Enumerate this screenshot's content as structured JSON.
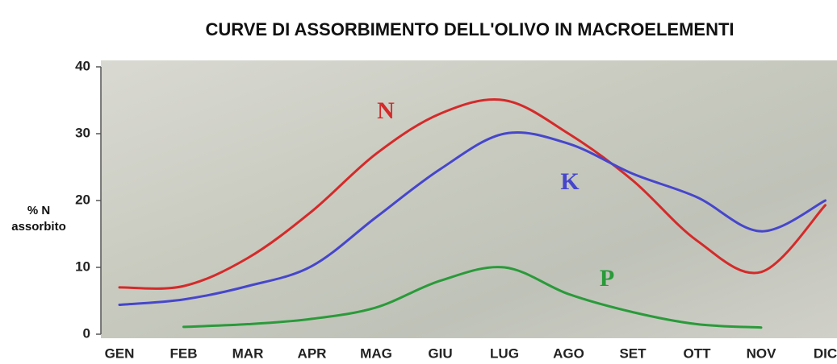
{
  "chart_data": {
    "type": "line",
    "title": "CURVE DI ASSORBIMENTO DELL'OLIVO IN MACROELEMENTI",
    "ylabel": [
      "% N",
      "assorbito"
    ],
    "categories": [
      "GEN",
      "FEB",
      "MAR",
      "APR",
      "MAG",
      "GIU",
      "LUG",
      "AGO",
      "SET",
      "OTT",
      "NOV",
      "DIC"
    ],
    "series": [
      {
        "name": "N",
        "color": "#d42a2a",
        "values": [
          7,
          7.2,
          11.4,
          18.4,
          27,
          33,
          35,
          30,
          23,
          14,
          9.3,
          19.3
        ]
      },
      {
        "name": "K",
        "color": "#4646cc",
        "values": [
          4.4,
          5.2,
          7.2,
          10.2,
          17.5,
          24.7,
          30,
          28.5,
          24,
          20.5,
          15.4,
          20
        ]
      },
      {
        "name": "P",
        "color": "#2a9a3a",
        "values": [
          null,
          1.1,
          1.5,
          2.3,
          4,
          8,
          10,
          6,
          3.3,
          1.5,
          1.0,
          null
        ]
      }
    ],
    "ylim": [
      0,
      40
    ],
    "yticks": [
      0,
      10,
      20,
      30,
      40
    ]
  }
}
